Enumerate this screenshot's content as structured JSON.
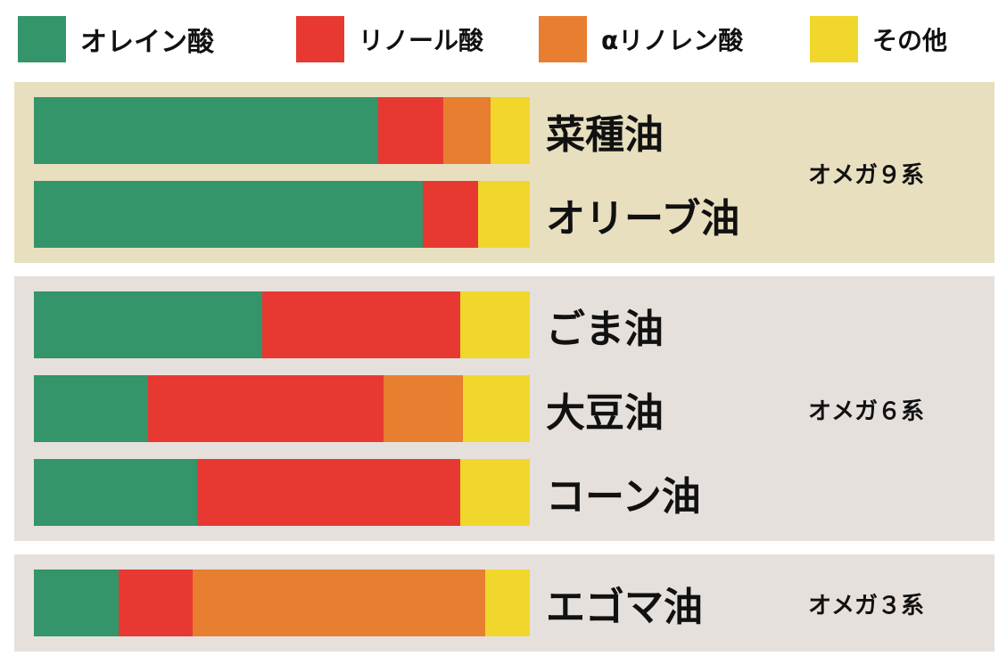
{
  "colors": {
    "oleic": "#34946a",
    "linoleic": "#e83832",
    "alpha_linolenic": "#e77e30",
    "other": "#f1d72b",
    "group_bg_omega9": "#e8dfbf",
    "group_bg_other": "#e6e0dc"
  },
  "legend": [
    {
      "label": "オレイン酸",
      "color": "#34946a"
    },
    {
      "label": "リノール酸",
      "color": "#e83832"
    },
    {
      "label": "αリノレン酸",
      "color": "#e77e30"
    },
    {
      "label": "その他",
      "color": "#f1d72b"
    }
  ],
  "chart_data": {
    "type": "bar",
    "orientation": "horizontal",
    "stacked": true,
    "normalized": true,
    "xlim": [
      0,
      100
    ],
    "series_names": [
      "オレイン酸",
      "リノール酸",
      "αリノレン酸",
      "その他"
    ],
    "groups": [
      {
        "name": "オメガ９系",
        "bg": "#e8dfbf",
        "oils": [
          {
            "name": "菜種油",
            "values": [
              69.5,
              13,
              9.5,
              8
            ]
          },
          {
            "name": "オリーブ油",
            "values": [
              78.5,
              11,
              0,
              10.5
            ]
          }
        ]
      },
      {
        "name": "オメガ６系",
        "bg": "#e6e0dc",
        "oils": [
          {
            "name": "ごま油",
            "values": [
              46,
              40,
              0,
              14
            ]
          },
          {
            "name": "大豆油",
            "values": [
              23,
              47.5,
              16,
              13.5
            ]
          },
          {
            "name": "コーン油",
            "values": [
              33,
              53,
              0,
              14
            ]
          }
        ]
      },
      {
        "name": "オメガ３系",
        "bg": "#e6e0dc",
        "oils": [
          {
            "name": "エゴマ油",
            "values": [
              17,
              15,
              59,
              9
            ]
          }
        ]
      }
    ]
  }
}
